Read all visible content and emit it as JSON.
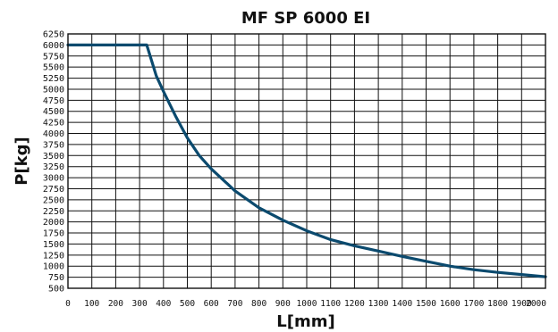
{
  "chart_data": {
    "type": "line",
    "title": "MF SP 6000 EI",
    "xlabel": "L[mm]",
    "ylabel": "P[kg]",
    "xlim": [
      0,
      2000
    ],
    "ylim": [
      500,
      6250
    ],
    "x_ticks": [
      "0",
      "100",
      "200",
      "300",
      "400",
      "500",
      "600",
      "700",
      "800",
      "900",
      "1000",
      "1100",
      "1200",
      "1300",
      "1400",
      "1500",
      "1600",
      "1700",
      "1800",
      "1900",
      "2000"
    ],
    "y_ticks": [
      "500",
      "750",
      "1000",
      "1250",
      "1500",
      "1750",
      "2000",
      "2250",
      "2500",
      "2750",
      "3000",
      "3250",
      "3500",
      "3750",
      "4000",
      "4250",
      "4500",
      "4750",
      "5000",
      "5250",
      "5500",
      "5750",
      "6000",
      "6250"
    ],
    "grid": true,
    "series_color": "#0b4a6e",
    "series": [
      {
        "x": [
          0,
          330,
          350,
          370,
          400,
          450,
          500,
          550,
          600,
          650,
          700,
          800,
          900,
          1000,
          1100,
          1200,
          1300,
          1400,
          1500,
          1600,
          1700,
          1800,
          1900,
          2000
        ],
        "y": [
          6000,
          6000,
          5650,
          5300,
          4950,
          4400,
          3900,
          3500,
          3200,
          2950,
          2700,
          2320,
          2040,
          1800,
          1600,
          1460,
          1340,
          1220,
          1110,
          1000,
          920,
          860,
          810,
          760
        ]
      }
    ]
  }
}
